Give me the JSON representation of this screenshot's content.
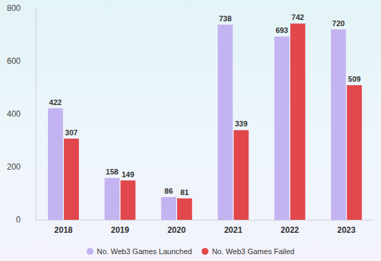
{
  "chart_data": {
    "type": "bar",
    "categories": [
      "2018",
      "2019",
      "2020",
      "2021",
      "2022",
      "2023"
    ],
    "series": [
      {
        "name": "No. Web3 Games Launched",
        "color": "#c4b3f1",
        "values": [
          422,
          158,
          86,
          738,
          693,
          720
        ]
      },
      {
        "name": "No. Web3 Games Failed",
        "color": "#e2474c",
        "values": [
          307,
          149,
          81,
          339,
          742,
          509
        ]
      }
    ],
    "ylim": [
      0,
      800
    ],
    "yticks": [
      0,
      200,
      400,
      600,
      800
    ],
    "grid": false,
    "data_labels": true,
    "legend": "bottom"
  }
}
